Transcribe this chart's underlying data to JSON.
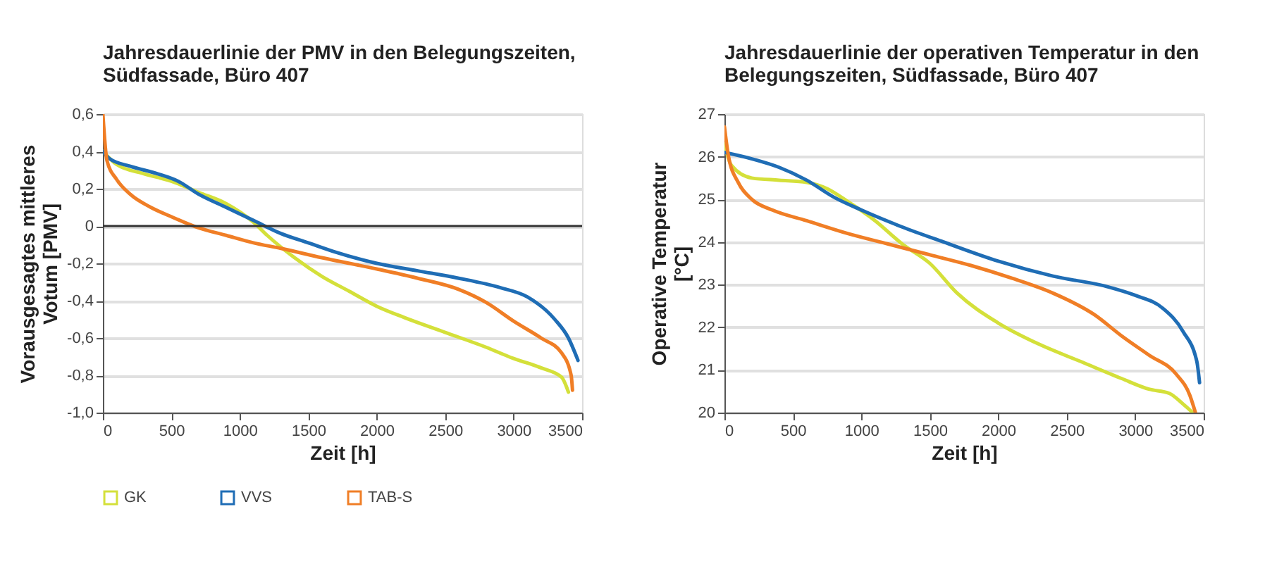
{
  "chart_data": [
    {
      "type": "line",
      "title": "Jahresdauerlinie der PMV in den Belegungszeiten,\nSüdfassade, Büro 407",
      "xlabel": "Zeit [h]",
      "ylabel": "Vorausgesagtes mittleres\nVotum [PMV]",
      "xlim": [
        0,
        3500
      ],
      "xticks": [
        0,
        500,
        1000,
        1500,
        2000,
        2500,
        3000,
        3500
      ],
      "ylim": [
        -1.0,
        0.6
      ],
      "yticks": [
        {
          "value": 0.6,
          "label": "0,6"
        },
        {
          "value": 0.4,
          "label": "0,4"
        },
        {
          "value": 0.2,
          "label": "0,2"
        },
        0,
        {
          "value": -0.2,
          "label": "-0,2"
        },
        {
          "value": -0.4,
          "label": "-0,4"
        },
        {
          "value": -0.6,
          "label": "-0,6"
        },
        {
          "value": -0.8,
          "label": "-0,8"
        },
        {
          "value": -1.0,
          "label": "-1,0"
        }
      ],
      "grid": "y",
      "legend": "bottom",
      "line_style": "solid",
      "marker": "none",
      "ref_lines": [
        {
          "axis": "y",
          "value": 0,
          "color": "#333333"
        }
      ],
      "series": [
        {
          "name": "GK",
          "color": "#d4e03a",
          "x": [
            0,
            100,
            300,
            500,
            700,
            900,
            1100,
            1200,
            1400,
            1600,
            1800,
            2000,
            2200,
            2500,
            2800,
            3000,
            3200,
            3350,
            3400
          ],
          "values": [
            0.4,
            0.33,
            0.28,
            0.24,
            0.18,
            0.12,
            0.02,
            -0.05,
            -0.17,
            -0.27,
            -0.35,
            -0.43,
            -0.49,
            -0.57,
            -0.65,
            -0.71,
            -0.76,
            -0.81,
            -0.89
          ]
        },
        {
          "name": "VVS",
          "color": "#1f6db5",
          "x": [
            0,
            50,
            200,
            400,
            550,
            700,
            900,
            1100,
            1300,
            1500,
            1700,
            2000,
            2300,
            2600,
            2900,
            3100,
            3300,
            3400,
            3470
          ],
          "values": [
            0.4,
            0.36,
            0.32,
            0.28,
            0.24,
            0.17,
            0.1,
            0.03,
            -0.04,
            -0.09,
            -0.14,
            -0.2,
            -0.24,
            -0.28,
            -0.33,
            -0.38,
            -0.5,
            -0.6,
            -0.72
          ]
        },
        {
          "name": "TAB-S",
          "color": "#f07e26",
          "x": [
            0,
            30,
            100,
            200,
            350,
            500,
            700,
            900,
            1100,
            1300,
            1600,
            2000,
            2300,
            2600,
            2800,
            3000,
            3200,
            3350,
            3420,
            3430
          ],
          "values": [
            0.6,
            0.35,
            0.25,
            0.17,
            0.1,
            0.05,
            -0.01,
            -0.05,
            -0.09,
            -0.12,
            -0.17,
            -0.23,
            -0.28,
            -0.34,
            -0.41,
            -0.51,
            -0.6,
            -0.68,
            -0.8,
            -0.88
          ]
        }
      ]
    },
    {
      "type": "line",
      "title": "Jahresdauerlinie der operativen Temperatur in den\nBelegungszeiten, Südfassade, Büro 407",
      "xlabel": "Zeit [h]",
      "ylabel": "Operative Temperatur\n[°C]",
      "xlim": [
        0,
        3500
      ],
      "xticks": [
        0,
        500,
        1000,
        1500,
        2000,
        2500,
        3000,
        3500
      ],
      "ylim": [
        20,
        27
      ],
      "yticks": [
        20,
        21,
        22,
        23,
        24,
        25,
        26,
        27
      ],
      "grid": "y",
      "legend": "bottom",
      "line_style": "solid",
      "marker": "none",
      "series": [
        {
          "name": "GK",
          "color": "#d4e03a",
          "x": [
            0,
            50,
            200,
            400,
            600,
            750,
            900,
            1100,
            1300,
            1500,
            1700,
            2000,
            2300,
            2600,
            2900,
            3100,
            3250,
            3350,
            3420
          ],
          "values": [
            26.3,
            25.8,
            25.5,
            25.45,
            25.4,
            25.25,
            24.95,
            24.5,
            23.95,
            23.5,
            22.8,
            22.1,
            21.6,
            21.2,
            20.8,
            20.55,
            20.45,
            20.2,
            20.0
          ]
        },
        {
          "name": "VVS",
          "color": "#1f6db5",
          "x": [
            0,
            200,
            400,
            600,
            800,
            1000,
            1300,
            1600,
            2000,
            2400,
            2800,
            3000,
            3200,
            3350,
            3450,
            3470
          ],
          "values": [
            26.1,
            25.95,
            25.75,
            25.45,
            25.05,
            24.75,
            24.35,
            24.0,
            23.55,
            23.2,
            22.95,
            22.75,
            22.45,
            21.9,
            21.2,
            20.7
          ]
        },
        {
          "name": "TAB-S",
          "color": "#f07e26",
          "x": [
            0,
            30,
            100,
            200,
            350,
            600,
            900,
            1200,
            1500,
            1800,
            2100,
            2400,
            2700,
            2900,
            3100,
            3300,
            3400,
            3440
          ],
          "values": [
            26.7,
            26.0,
            25.4,
            25.0,
            24.75,
            24.5,
            24.2,
            23.95,
            23.7,
            23.45,
            23.15,
            22.8,
            22.3,
            21.8,
            21.35,
            20.9,
            20.4,
            20.0
          ]
        }
      ]
    }
  ]
}
